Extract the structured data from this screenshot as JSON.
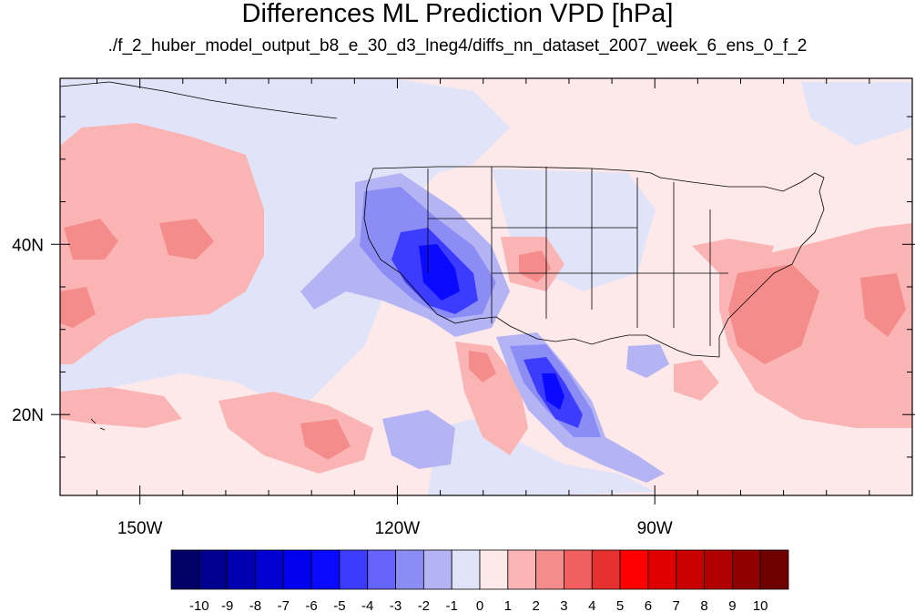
{
  "title": "Differences ML Prediction VPD [hPa]",
  "subtitle": "./f_2_huber_model_output_b8_e_30_d3_lneg4/diffs_nn_dataset_2007_week_6_ens_0_f_2",
  "axes": {
    "lon_ticks": [
      {
        "lon": -150,
        "label": "150W"
      },
      {
        "lon": -120,
        "label": "120W"
      },
      {
        "lon": -90,
        "label": "90W"
      }
    ],
    "lat_ticks": [
      {
        "lat": 40,
        "label": "40N"
      },
      {
        "lat": 20,
        "label": "20N"
      }
    ],
    "lon_range": [
      -159.3,
      -60
    ],
    "lat_range": [
      10.5,
      59.5
    ]
  },
  "colorbar": {
    "labels": [
      "-10",
      "-9",
      "-8",
      "-7",
      "-6",
      "-5",
      "-4",
      "-3",
      "-2",
      "-1",
      "0",
      "1",
      "2",
      "3",
      "4",
      "5",
      "6",
      "7",
      "8",
      "9",
      "10"
    ],
    "colors": [
      "#000066",
      "#00008f",
      "#0000b0",
      "#0000d0",
      "#0000ef",
      "#0a0aff",
      "#3c3cff",
      "#6464fb",
      "#8c8cf5",
      "#b4b4f5",
      "#e1e4f8",
      "#fde9e9",
      "#fbb4b4",
      "#f58c8c",
      "#f06060",
      "#e63030",
      "#ff0000",
      "#e00000",
      "#c80000",
      "#b00000",
      "#900000",
      "#700000"
    ]
  },
  "colors": {
    "background_pos": "#fde9e9",
    "neutral_neg": "#e1e4f8"
  }
}
